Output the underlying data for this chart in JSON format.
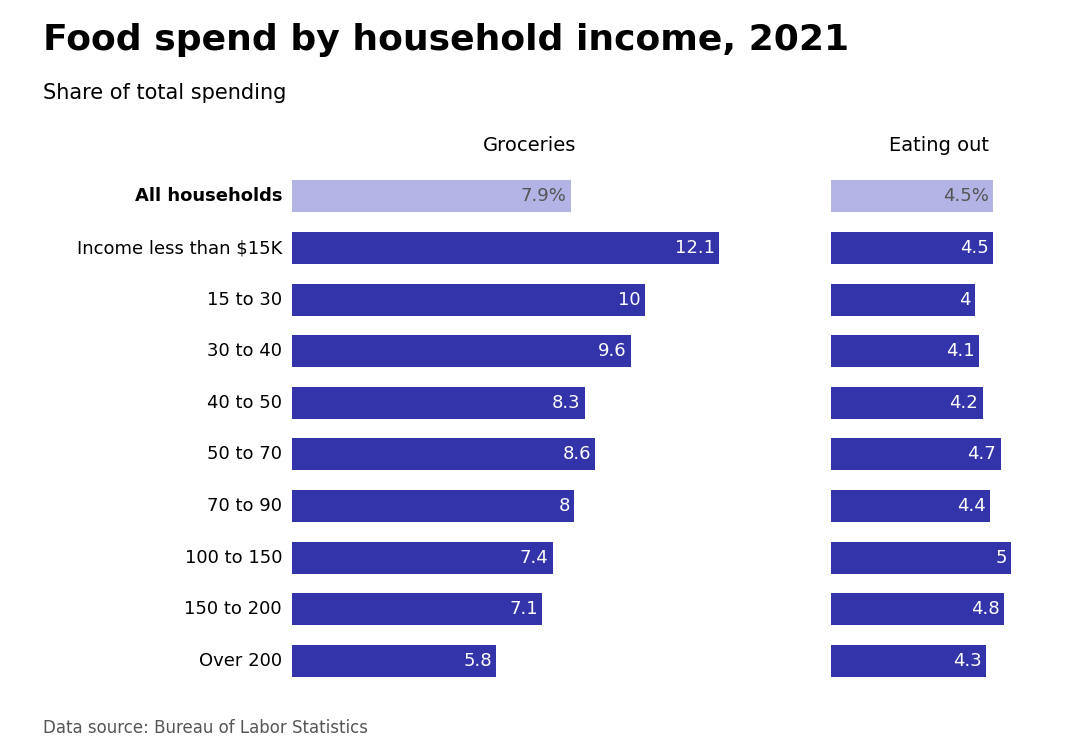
{
  "title": "Food spend by household income, 2021",
  "subtitle": "Share of total spending",
  "source": "Data source: Bureau of Labor Statistics",
  "col1_header": "Groceries",
  "col2_header": "Eating out",
  "categories": [
    "All households",
    "Income less than $15K",
    "15 to 30",
    "30 to 40",
    "40 to 50",
    "50 to 70",
    "70 to 90",
    "100 to 150",
    "150 to 200",
    "Over 200"
  ],
  "groceries": [
    7.9,
    12.1,
    10.0,
    9.6,
    8.3,
    8.6,
    8.0,
    7.4,
    7.1,
    5.8
  ],
  "eating_out": [
    4.5,
    4.5,
    4.0,
    4.1,
    4.2,
    4.7,
    4.4,
    5.0,
    4.8,
    4.3
  ],
  "all_households_idx": 0,
  "bar_color_normal": "#3333aa",
  "bar_color_all": "#b3b3e6",
  "label_color_normal": "#ffffff",
  "label_color_all": "#555555",
  "groceries_label_all": "7.9%",
  "eating_out_label_all": "4.5%",
  "background_color": "#ffffff",
  "title_fontsize": 26,
  "subtitle_fontsize": 15,
  "header_fontsize": 14,
  "label_fontsize": 13,
  "tick_fontsize": 13,
  "source_fontsize": 12,
  "groceries_xlim": 13.5,
  "eating_out_xlim": 6.0
}
